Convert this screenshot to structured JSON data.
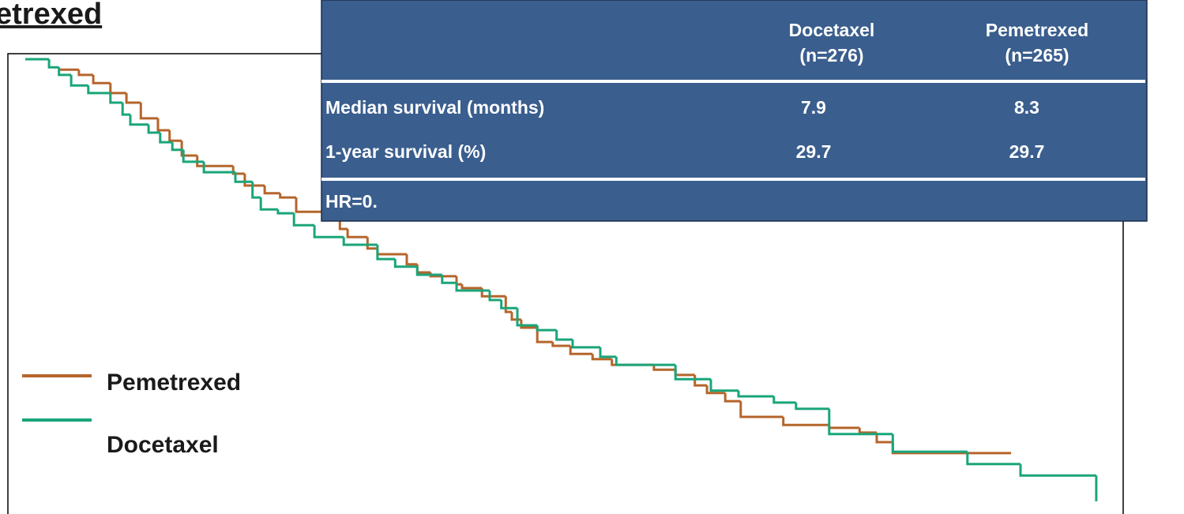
{
  "chart_data": {
    "type": "step",
    "title": "etrexed",
    "xlim": [
      0,
      20
    ],
    "ylim": [
      0,
      1
    ],
    "legend": "left",
    "series": [
      {
        "name": "Pemetrexed",
        "color": "#b5652b",
        "x": [
          0.61,
          0.97,
          1.23,
          1.54,
          1.83,
          2.09,
          2.4,
          2.61,
          2.83,
          3.11,
          3.76,
          3.97,
          4.33,
          4.61,
          4.9,
          5.69,
          5.83,
          6.19,
          6.37,
          6.9,
          7.09,
          7.33,
          7.8,
          7.9,
          8.26,
          8.69,
          8.8,
          8.97,
          9.26,
          9.54,
          9.86,
          10.26,
          10.61,
          11.37,
          11.76,
          12.11,
          12.33,
          12.66,
          12.94,
          13.71,
          14.54,
          15.09,
          15.4,
          15.69,
          17.83
        ],
        "values": [
          0.978,
          0.967,
          0.95,
          0.929,
          0.909,
          0.876,
          0.851,
          0.829,
          0.798,
          0.776,
          0.76,
          0.735,
          0.719,
          0.71,
          0.68,
          0.644,
          0.627,
          0.603,
          0.591,
          0.57,
          0.553,
          0.545,
          0.528,
          0.52,
          0.503,
          0.47,
          0.454,
          0.437,
          0.407,
          0.399,
          0.382,
          0.371,
          0.359,
          0.349,
          0.338,
          0.316,
          0.3,
          0.283,
          0.25,
          0.233,
          0.227,
          0.217,
          0.197,
          0.174,
          0.174
        ]
      },
      {
        "name": "Docetaxel",
        "color": "#1aa57a",
        "x": [
          0,
          0.43,
          0.61,
          0.83,
          1.14,
          1.54,
          1.76,
          1.9,
          2.23,
          2.44,
          2.66,
          2.86,
          3.23,
          3.8,
          4.11,
          4.26,
          4.57,
          4.86,
          5.23,
          5.76,
          6.37,
          6.69,
          7.09,
          7.54,
          7.8,
          8.4,
          8.61,
          8.9,
          9.26,
          9.61,
          9.9,
          10.4,
          10.69,
          11.76,
          12.4,
          12.9,
          13.54,
          13.94,
          14.54,
          15.69,
          17.04,
          18,
          19.37
        ],
        "values": [
          1,
          0.983,
          0.967,
          0.945,
          0.929,
          0.909,
          0.884,
          0.863,
          0.846,
          0.826,
          0.81,
          0.785,
          0.763,
          0.743,
          0.71,
          0.685,
          0.677,
          0.652,
          0.627,
          0.611,
          0.581,
          0.565,
          0.548,
          0.531,
          0.515,
          0.495,
          0.478,
          0.442,
          0.432,
          0.412,
          0.396,
          0.376,
          0.359,
          0.329,
          0.305,
          0.293,
          0.28,
          0.267,
          0.214,
          0.177,
          0.151,
          0.127,
          0.073
        ]
      }
    ]
  },
  "table": {
    "header": [
      [
        "Docetaxel",
        "(n=276)"
      ],
      [
        "Pemetrexed",
        "(n=265)"
      ]
    ],
    "rows": [
      [
        "Median survival (months)",
        "7.9",
        "8.3"
      ],
      [
        "1-year survival (%)",
        "29.7",
        "29.7"
      ]
    ],
    "footer": "HR=0."
  }
}
